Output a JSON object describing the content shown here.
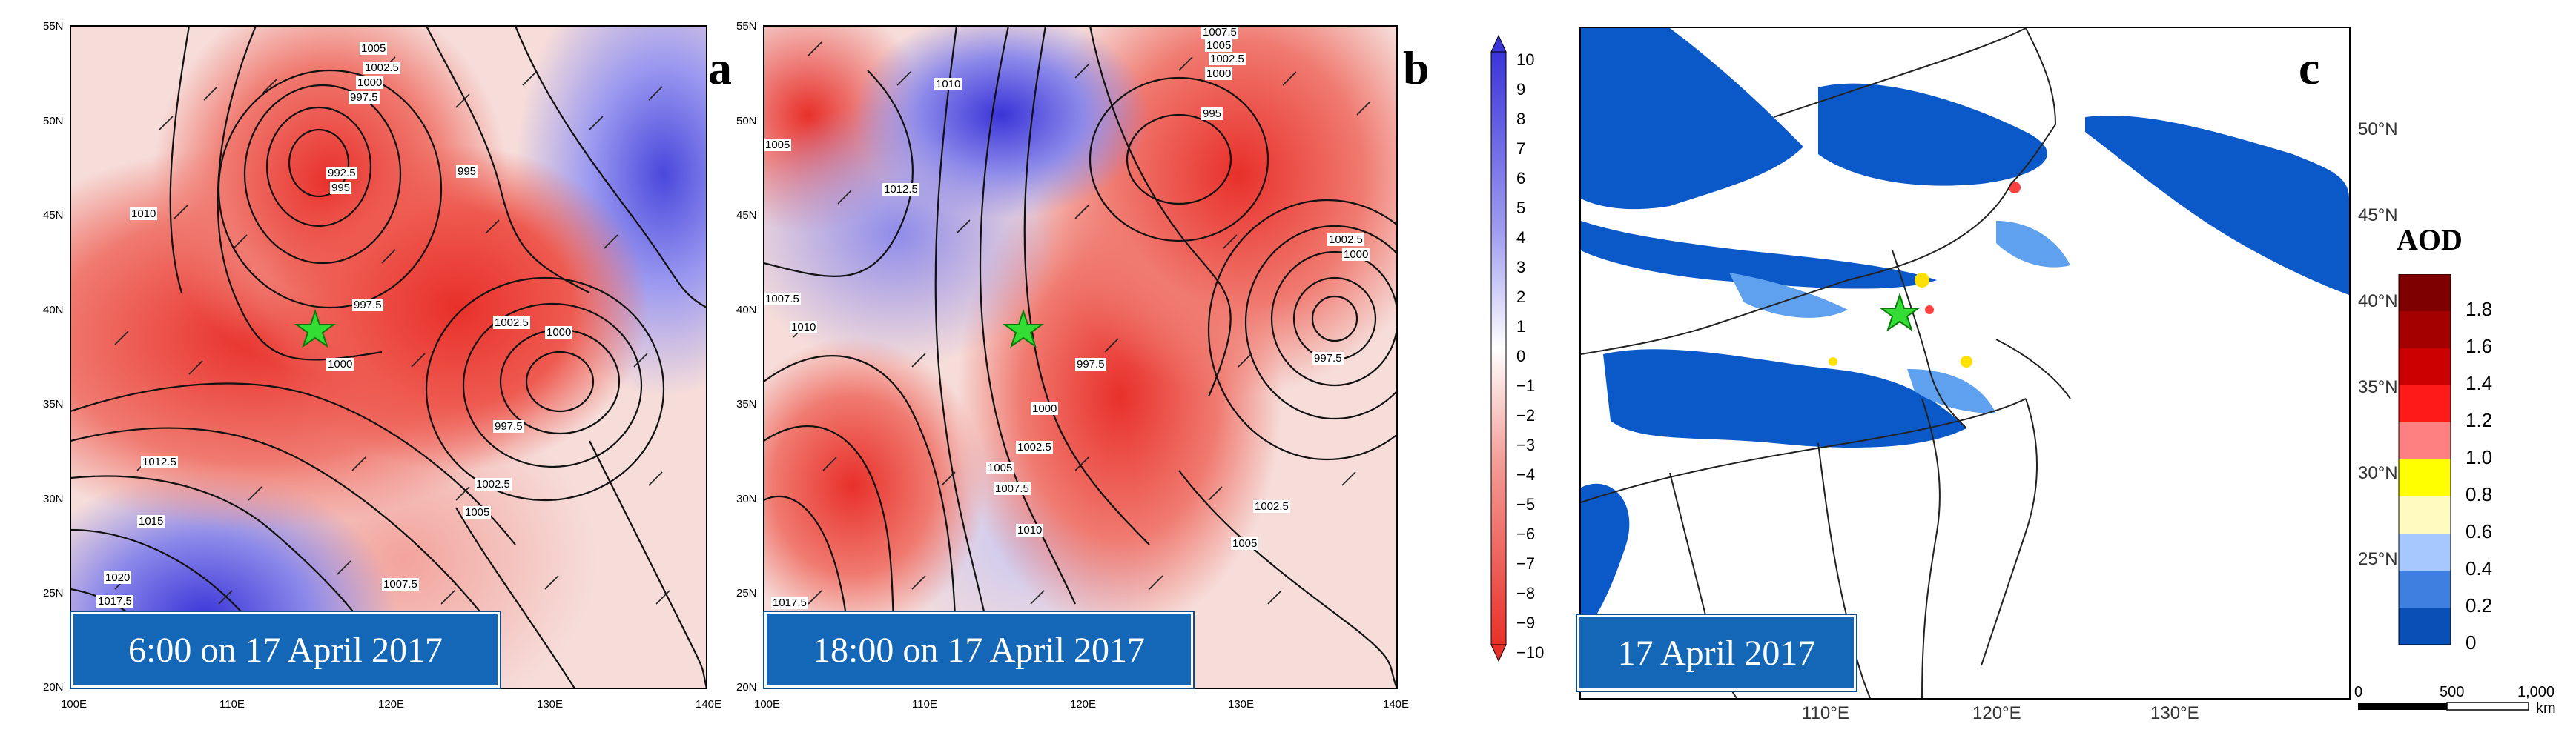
{
  "panels": [
    {
      "letter": "a",
      "caption": "6:00  on 17 April 2017",
      "x_ticks": [
        "100E",
        "110E",
        "120E",
        "130E",
        "140E"
      ],
      "y_ticks": [
        "55N",
        "50N",
        "45N",
        "40N",
        "35N",
        "30N",
        "25N",
        "20N"
      ],
      "isobar_labels": [
        "1005",
        "1002.5",
        "1000",
        "997.5",
        "992.5",
        "995",
        "995",
        "1010",
        "997.5",
        "1000",
        "1002.5",
        "1000",
        "997.5",
        "1012.5",
        "1015",
        "1020",
        "1017.5",
        "1002.5",
        "1005",
        "1007.5"
      ]
    },
    {
      "letter": "b",
      "caption": "18:00  on 17 April 2017",
      "x_ticks": [
        "100E",
        "110E",
        "120E",
        "130E",
        "140E"
      ],
      "y_ticks": [
        "55N",
        "50N",
        "45N",
        "40N",
        "35N",
        "30N",
        "25N",
        "20N"
      ],
      "isobar_labels": [
        "1007.5",
        "1005",
        "1002.5",
        "1000",
        "995",
        "1010",
        "1005",
        "1012.5",
        "1007.5",
        "1010",
        "997.5",
        "1000",
        "1002.5",
        "1005",
        "1007.5",
        "1010",
        "1002.5",
        "1000",
        "997.5",
        "1002.5",
        "1005",
        "1017.5"
      ]
    },
    {
      "letter": "c",
      "caption": "17 April 2017",
      "x_ticks": [
        "110°E",
        "120°E",
        "130°E"
      ],
      "y_ticks": [
        "50°N",
        "45°N",
        "40°N",
        "35°N",
        "30°N",
        "25°N"
      ]
    }
  ],
  "temp_colorbar": {
    "labels": [
      "10",
      "9",
      "8",
      "7",
      "6",
      "5",
      "4",
      "3",
      "2",
      "1",
      "0",
      "−1",
      "−2",
      "−3",
      "−4",
      "−5",
      "−6",
      "−7",
      "−8",
      "−9",
      "−10"
    ]
  },
  "aod_legend": {
    "title": "AOD",
    "labels": [
      "1.8",
      "1.6",
      "1.4",
      "1.2",
      "1.0",
      "0.8",
      "0.6",
      "0.4",
      "0.2",
      "0"
    ],
    "colors": [
      "#7f0000",
      "#a50000",
      "#cc0000",
      "#ff1a1a",
      "#ff8080",
      "#ffff00",
      "#fffac0",
      "#a6c8ff",
      "#3f7fe0",
      "#0a4fb5"
    ]
  },
  "scale_bar": {
    "labels": [
      "0",
      "500",
      "1,000"
    ],
    "unit": "km"
  },
  "colors": {
    "caption_bg": "#1467b7",
    "station_star": "#33dd33",
    "positive": "#e8302a",
    "negative": "#3a34d8"
  }
}
